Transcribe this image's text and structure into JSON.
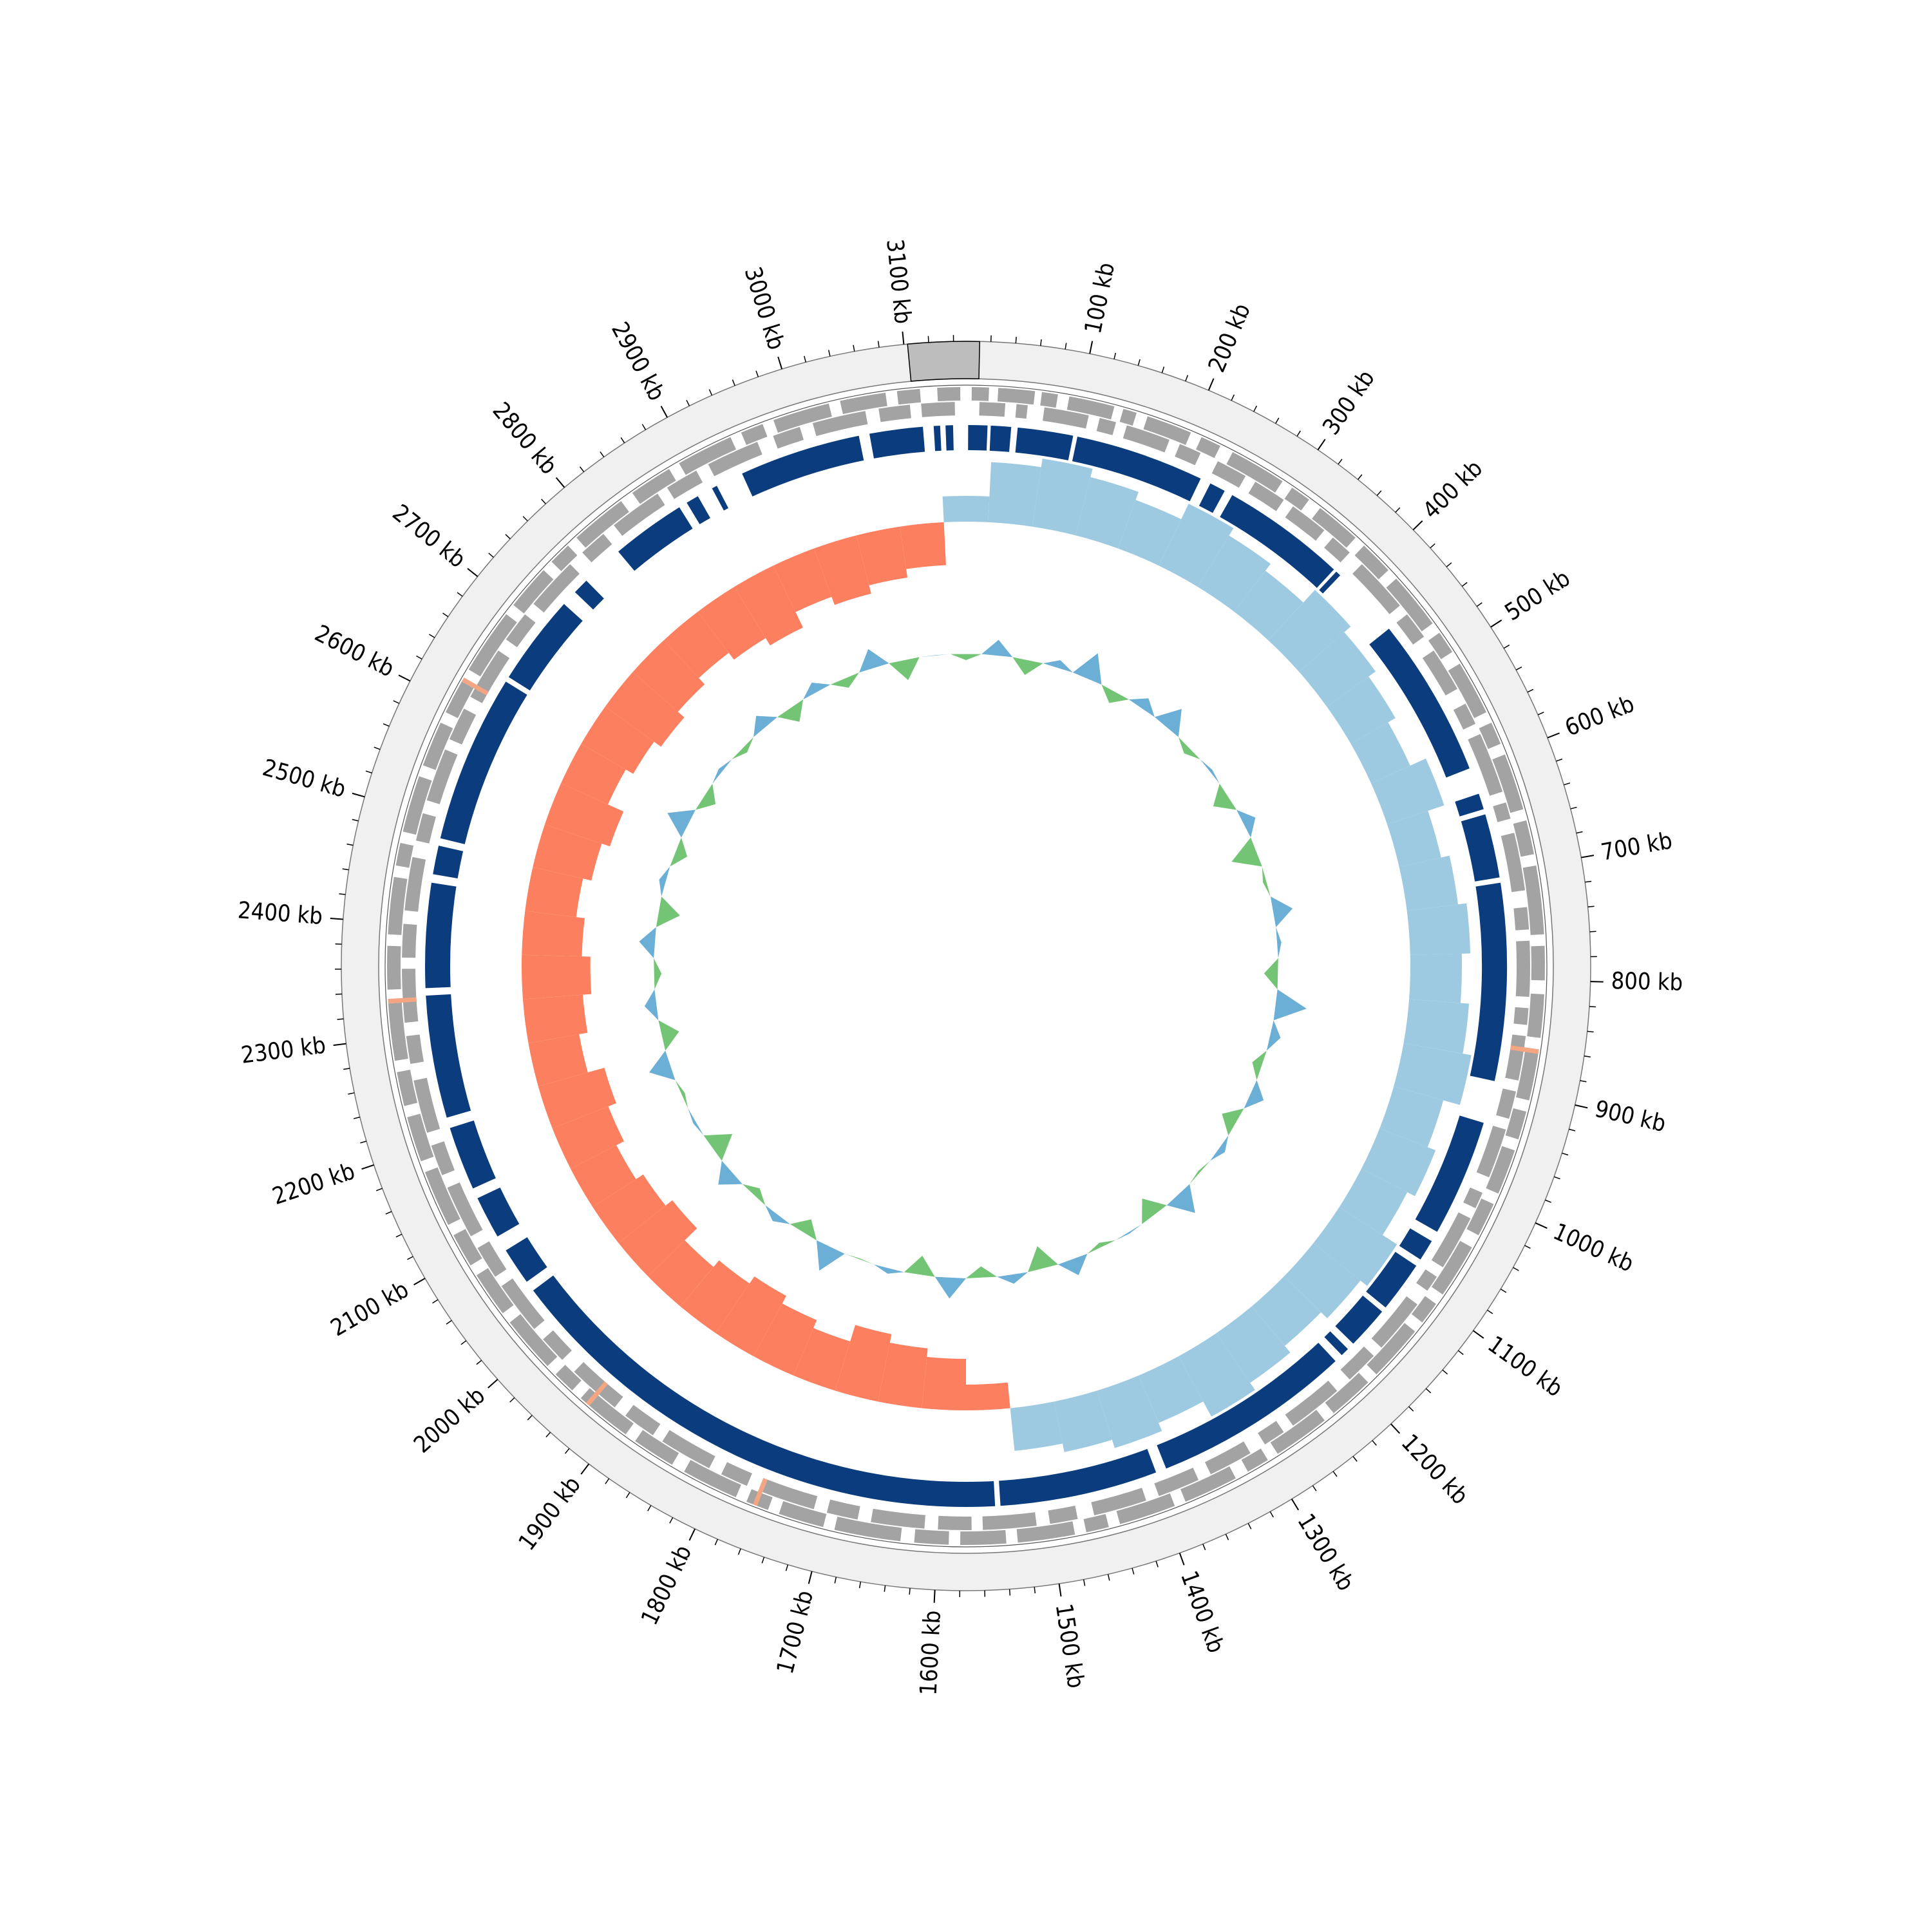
{
  "chart_data": {
    "type": "circos",
    "xlim": [
      0,
      3150
    ],
    "xticks": [
      {
        "value": 100,
        "label": "100 kb"
      },
      {
        "value": 200,
        "label": "200 kb"
      },
      {
        "value": 300,
        "label": "300 kb"
      },
      {
        "value": 400,
        "label": "400 kb"
      },
      {
        "value": 500,
        "label": "500 kb"
      },
      {
        "value": 600,
        "label": "600 kb"
      },
      {
        "value": 700,
        "label": "700 kb"
      },
      {
        "value": 800,
        "label": "800 kb"
      },
      {
        "value": 900,
        "label": "900 kb"
      },
      {
        "value": 1000,
        "label": "1000 kb"
      },
      {
        "value": 1100,
        "label": "1100 kb"
      },
      {
        "value": 1200,
        "label": "1200 kb"
      },
      {
        "value": 1300,
        "label": "1300 kb"
      },
      {
        "value": 1400,
        "label": "1400 kb"
      },
      {
        "value": 1500,
        "label": "1500 kb"
      },
      {
        "value": 1600,
        "label": "1600 kb"
      },
      {
        "value": 1700,
        "label": "1700 kb"
      },
      {
        "value": 1800,
        "label": "1800 kb"
      },
      {
        "value": 1900,
        "label": "1900 kb"
      },
      {
        "value": 2000,
        "label": "2000 kb"
      },
      {
        "value": 2100,
        "label": "2100 kb"
      },
      {
        "value": 2200,
        "label": "2200 kb"
      },
      {
        "value": 2300,
        "label": "2300 kb"
      },
      {
        "value": 2400,
        "label": "2400 kb"
      },
      {
        "value": 2500,
        "label": "2500 kb"
      },
      {
        "value": 2600,
        "label": "2600 kb"
      },
      {
        "value": 2700,
        "label": "2700 kb"
      },
      {
        "value": 2800,
        "label": "2800 kb"
      },
      {
        "value": 2900,
        "label": "2900 kb"
      },
      {
        "value": 3000,
        "label": "3000 kb"
      },
      {
        "value": 3100,
        "label": "3100 kb"
      }
    ],
    "minor_xticks": [
      20,
      40,
      60,
      80,
      120,
      140,
      160,
      180,
      220,
      240,
      260,
      280,
      320,
      340,
      360,
      380,
      420,
      440,
      460,
      480,
      520,
      540,
      560,
      580,
      620,
      640,
      660,
      680,
      720,
      740,
      760,
      780,
      820,
      840,
      860,
      880,
      920,
      940,
      960,
      980,
      1020,
      1040,
      1060,
      1080,
      1120,
      1140,
      1160,
      1180,
      1220,
      1240,
      1260,
      1280,
      1320,
      1340,
      1360,
      1380,
      1420,
      1440,
      1460,
      1480,
      1520,
      1540,
      1560,
      1580,
      1620,
      1640,
      1660,
      1680,
      1720,
      1740,
      1760,
      1780,
      1820,
      1840,
      1860,
      1880,
      1920,
      1940,
      1960,
      1980,
      2020,
      2040,
      2060,
      2080,
      2120,
      2140,
      2160,
      2180,
      2220,
      2240,
      2260,
      2280,
      2320,
      2340,
      2360,
      2380,
      2420,
      2440,
      2460,
      2480,
      2520,
      2540,
      2560,
      2580,
      2620,
      2640,
      2660,
      2680,
      2720,
      2740,
      2760,
      2780,
      2820,
      2840,
      2860,
      2880,
      2920,
      2940,
      2960,
      2980,
      3020,
      3040,
      3060,
      3080,
      3120,
      3140
    ],
    "highlight": [
      3103,
      11
    ],
    "highlight_color": "#bdbdbd",
    "ring_color": "#f0f0f0",
    "gene_color": "#a3a3a3",
    "rna_color": "#f4a582",
    "genes_plus": [
      [
        5,
        20
      ],
      [
        28,
        60
      ],
      [
        66,
        80
      ],
      [
        90,
        130
      ],
      [
        138,
        150
      ],
      [
        160,
        200
      ],
      [
        210,
        228
      ],
      [
        240,
        290
      ],
      [
        300,
        318
      ],
      [
        330,
        370
      ],
      [
        380,
        410
      ],
      [
        420,
        470
      ],
      [
        480,
        500
      ],
      [
        512,
        560
      ],
      [
        570,
        590
      ],
      [
        600,
        650
      ],
      [
        660,
        690
      ],
      [
        700,
        760
      ],
      [
        770,
        800
      ],
      [
        812,
        850
      ],
      [
        860,
        905
      ],
      [
        915,
        940
      ],
      [
        950,
        990
      ],
      [
        1000,
        1030
      ],
      [
        1042,
        1090
      ],
      [
        1100,
        1120
      ],
      [
        1130,
        1180
      ],
      [
        1190,
        1230
      ],
      [
        1240,
        1290
      ],
      [
        1300,
        1320
      ],
      [
        1332,
        1380
      ],
      [
        1390,
        1440
      ],
      [
        1450,
        1470
      ],
      [
        1480,
        1530
      ],
      [
        1540,
        1580
      ],
      [
        1590,
        1620
      ],
      [
        1632,
        1690
      ],
      [
        1700,
        1740
      ],
      [
        1750,
        1770
      ],
      [
        1780,
        1830
      ],
      [
        1842,
        1880
      ],
      [
        1890,
        1940
      ],
      [
        1950,
        1970
      ],
      [
        1980,
        2030
      ],
      [
        2040,
        2080
      ],
      [
        2090,
        2120
      ],
      [
        2130,
        2180
      ],
      [
        2190,
        2230
      ],
      [
        2240,
        2270
      ],
      [
        2280,
        2330
      ],
      [
        2342,
        2380
      ],
      [
        2390,
        2440
      ],
      [
        2450,
        2470
      ],
      [
        2480,
        2530
      ],
      [
        2540,
        2580
      ],
      [
        2590,
        2620
      ],
      [
        2632,
        2690
      ],
      [
        2700,
        2740
      ],
      [
        2750,
        2770
      ],
      [
        2780,
        2830
      ],
      [
        2842,
        2880
      ],
      [
        2890,
        2940
      ],
      [
        2950,
        2970
      ],
      [
        2980,
        3030
      ],
      [
        3040,
        3080
      ],
      [
        3090,
        3110
      ],
      [
        3125,
        3145
      ]
    ],
    "genes_minus": [
      [
        12,
        35
      ],
      [
        45,
        55
      ],
      [
        70,
        110
      ],
      [
        120,
        135
      ],
      [
        145,
        185
      ],
      [
        195,
        215
      ],
      [
        232,
        260
      ],
      [
        270,
        300
      ],
      [
        310,
        345
      ],
      [
        355,
        375
      ],
      [
        390,
        440
      ],
      [
        450,
        475
      ],
      [
        490,
        530
      ],
      [
        545,
        565
      ],
      [
        575,
        630
      ],
      [
        640,
        655
      ],
      [
        668,
        720
      ],
      [
        735,
        755
      ],
      [
        765,
        815
      ],
      [
        825,
        840
      ],
      [
        850,
        890
      ],
      [
        900,
        925
      ],
      [
        935,
        980
      ],
      [
        995,
        1010
      ],
      [
        1020,
        1070
      ],
      [
        1080,
        1095
      ],
      [
        1110,
        1160
      ],
      [
        1170,
        1200
      ],
      [
        1215,
        1265
      ],
      [
        1275,
        1295
      ],
      [
        1310,
        1350
      ],
      [
        1362,
        1400
      ],
      [
        1412,
        1460
      ],
      [
        1475,
        1500
      ],
      [
        1512,
        1560
      ],
      [
        1570,
        1600
      ],
      [
        1612,
        1660
      ],
      [
        1672,
        1700
      ],
      [
        1712,
        1760
      ],
      [
        1775,
        1800
      ],
      [
        1812,
        1860
      ],
      [
        1870,
        1900
      ],
      [
        1912,
        1960
      ],
      [
        1975,
        2000
      ],
      [
        2012,
        2060
      ],
      [
        2070,
        2100
      ],
      [
        2112,
        2160
      ],
      [
        2172,
        2200
      ],
      [
        2212,
        2260
      ],
      [
        2275,
        2300
      ],
      [
        2312,
        2360
      ],
      [
        2370,
        2400
      ],
      [
        2412,
        2460
      ],
      [
        2475,
        2500
      ],
      [
        2512,
        2560
      ],
      [
        2570,
        2600
      ],
      [
        2612,
        2660
      ],
      [
        2672,
        2700
      ],
      [
        2712,
        2760
      ],
      [
        2775,
        2800
      ],
      [
        2812,
        2860
      ],
      [
        2870,
        2900
      ],
      [
        2912,
        2960
      ],
      [
        2975,
        3000
      ],
      [
        3012,
        3060
      ],
      [
        3072,
        3100
      ],
      [
        3110,
        3140
      ]
    ],
    "rna": [
      [
        860,
        864
      ],
      [
        1760,
        1764
      ],
      [
        1930,
        1934
      ],
      [
        2330,
        2334
      ],
      [
        2620,
        2624
      ]
    ],
    "blocks_color": "#0b3d7e",
    "blocks": [
      [
        2,
        20
      ],
      [
        23,
        42
      ],
      [
        48,
        100
      ],
      [
        104,
        225
      ],
      [
        235,
        250
      ],
      [
        258,
        375
      ],
      [
        378,
        383
      ],
      [
        450,
        600
      ],
      [
        625,
        640
      ],
      [
        645,
        705
      ],
      [
        710,
        895
      ],
      [
        935,
        1045
      ],
      [
        1055,
        1075
      ],
      [
        1082,
        1130
      ],
      [
        1135,
        1175
      ],
      [
        1182,
        1190
      ],
      [
        1198,
        1385
      ],
      [
        1395,
        1543
      ],
      [
        1548,
        2040
      ],
      [
        2050,
        2085
      ],
      [
        2100,
        2140
      ],
      [
        2150,
        2210
      ],
      [
        2220,
        2335
      ],
      [
        2342,
        2440
      ],
      [
        2448,
        2475
      ],
      [
        2482,
        2640
      ],
      [
        2645,
        2730
      ],
      [
        2745,
        2760
      ],
      [
        2800,
        2870
      ],
      [
        2878,
        2890
      ],
      [
        2905,
        2910
      ],
      [
        2936,
        3050
      ],
      [
        3060,
        3110
      ],
      [
        3120,
        3126
      ],
      [
        3131,
        3138
      ]
    ],
    "x": [
      0,
      50,
      100,
      150,
      200,
      250,
      300,
      350,
      400,
      450,
      500,
      550,
      600,
      650,
      700,
      750,
      800,
      850,
      900,
      950,
      1000,
      1050,
      1100,
      1150,
      1200,
      1250,
      1300,
      1350,
      1400,
      1450,
      1500,
      1550,
      1600,
      1650,
      1700,
      1750,
      1800,
      1850,
      1900,
      1950,
      2000,
      2050,
      2100,
      2150,
      2200,
      2250,
      2300,
      2350,
      2400,
      2450,
      2500,
      2550,
      2600,
      2650,
      2700,
      2750,
      2800,
      2850,
      2900,
      2950,
      3000,
      3050,
      3100
    ],
    "gc_skew": {
      "ylim": [
        -0.15,
        0.15
      ],
      "positive_color": "#9ecae1",
      "negative_color": "#fc8060",
      "values": [
        0.03,
        0.07,
        0.08,
        0.07,
        0.06,
        0.08,
        0.07,
        0.06,
        0.08,
        0.07,
        0.06,
        0.05,
        0.07,
        0.05,
        0.06,
        0.07,
        0.06,
        0.07,
        0.08,
        0.06,
        0.07,
        0.06,
        0.08,
        0.07,
        0.06,
        0.07,
        0.08,
        0.06,
        0.07,
        0.06,
        0.05,
        -0.03,
        -0.06,
        -0.07,
        -0.08,
        -0.06,
        -0.07,
        -0.08,
        -0.07,
        -0.06,
        -0.08,
        -0.07,
        -0.06,
        -0.07,
        -0.08,
        -0.06,
        -0.07,
        -0.08,
        -0.07,
        -0.06,
        -0.07,
        -0.08,
        -0.06,
        -0.07,
        -0.08,
        -0.07,
        -0.06,
        -0.07,
        -0.08,
        -0.06,
        -0.07,
        -0.06,
        -0.05
      ]
    },
    "gc_content": {
      "ylim": [
        42,
        58
      ],
      "above_color": "#6baed6",
      "below_color": "#74c476",
      "values": [
        49.5,
        51.2,
        48.8,
        50.6,
        52.1,
        49.0,
        50.9,
        51.8,
        49.4,
        50.2,
        48.6,
        51.0,
        47.9,
        49.7,
        51.5,
        50.3,
        48.9,
        52.4,
        50.8,
        49.2,
        51.1,
        48.7,
        50.5,
        49.8,
        51.9,
        48.4,
        50.1,
        49.6,
        51.3,
        48.2,
        50.7,
        49.1,
        51.6,
        48.5,
        50.4,
        49.9,
        52.0,
        48.8,
        50.6,
        49.3,
        51.4,
        48.1,
        50.2,
        49.7,
        51.7,
        48.6,
        50.9,
        49.4,
        51.2,
        48.3,
        50.5,
        49.0,
        51.8,
        48.9,
        50.3,
        49.5,
        51.1,
        48.7,
        50.8,
        49.2,
        51.5,
        48.4,
        50.0
      ]
    }
  }
}
